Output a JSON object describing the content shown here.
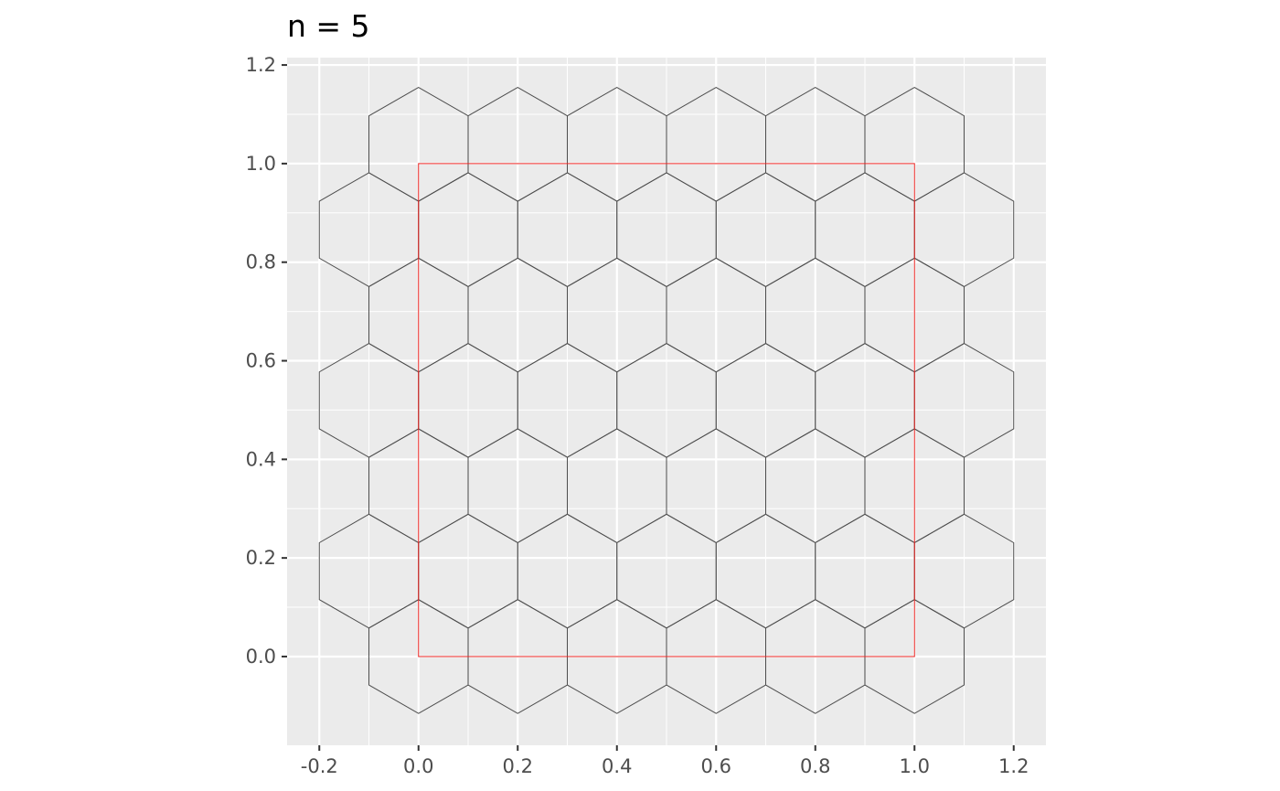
{
  "chart_data": {
    "type": "polygon",
    "title": "n = 5",
    "xlabel": "",
    "ylabel": "",
    "xlim": [
      -0.265,
      1.265
    ],
    "ylim": [
      -0.18,
      1.215
    ],
    "x_ticks": [
      -0.2,
      0.0,
      0.2,
      0.4,
      0.6,
      0.8,
      1.0,
      1.2
    ],
    "y_ticks": [
      0.0,
      0.2,
      0.4,
      0.6,
      0.8,
      1.0,
      1.2
    ],
    "x_tick_labels": [
      "-0.2",
      "0.0",
      "0.2",
      "0.4",
      "0.6",
      "0.8",
      "1.0",
      "1.2"
    ],
    "y_tick_labels": [
      "0.0",
      "0.2",
      "0.4",
      "0.6",
      "0.8",
      "1.0",
      "1.2"
    ],
    "grid": true,
    "hex_grid": {
      "n": 5,
      "cellsize": 0.2,
      "row_spacing": 0.1732,
      "rows": [
        {
          "y": 0.0,
          "x_centers": [
            0.0,
            0.2,
            0.4,
            0.6,
            0.8,
            1.0
          ]
        },
        {
          "y": 0.1732,
          "x_centers": [
            -0.1,
            0.1,
            0.3,
            0.5,
            0.7,
            0.9,
            1.1
          ]
        },
        {
          "y": 0.3464,
          "x_centers": [
            0.0,
            0.2,
            0.4,
            0.6,
            0.8,
            1.0
          ]
        },
        {
          "y": 0.5196,
          "x_centers": [
            -0.1,
            0.1,
            0.3,
            0.5,
            0.7,
            0.9,
            1.1
          ]
        },
        {
          "y": 0.6928,
          "x_centers": [
            0.0,
            0.2,
            0.4,
            0.6,
            0.8,
            1.0
          ]
        },
        {
          "y": 0.866,
          "x_centers": [
            -0.1,
            0.1,
            0.3,
            0.5,
            0.7,
            0.9,
            1.1
          ]
        },
        {
          "y": 1.0392,
          "x_centers": [
            0.0,
            0.2,
            0.4,
            0.6,
            0.8,
            1.0
          ]
        }
      ]
    },
    "boundary_square": {
      "xmin": 0.0,
      "ymin": 0.0,
      "xmax": 1.0,
      "ymax": 1.0
    },
    "colors": {
      "panel_background": "#ebebeb",
      "grid": "#ffffff",
      "hexagon_stroke": "#4d4d4d",
      "boundary_stroke": "#e8221f",
      "tick": "#333333"
    }
  }
}
